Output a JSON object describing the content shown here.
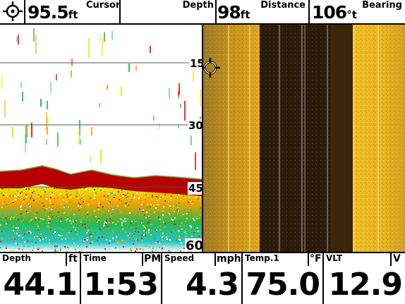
{
  "top": {
    "cursor_label": "Cursor",
    "cursor_value": "95.5",
    "cursor_unit": "ft",
    "depth_label": "Depth",
    "depth_value": "98",
    "depth_unit": "ft",
    "distance_label": "Distance",
    "distance_value": "106",
    "distance_unit": "°t",
    "bearing_label": "Bearing"
  },
  "sonar": {
    "depth_marks": [
      "15",
      "30",
      "45",
      "60"
    ],
    "colors": {
      "bottom": "#b80000",
      "scatter_yellow": "#f2e600",
      "scatter_green": "#2bb84a",
      "scatter_cyan": "#27c6c9"
    }
  },
  "side_imaging": {
    "colors": {
      "water": "#2a1a0a",
      "bottom_light": "#f0c020",
      "bottom_mid": "#c89318"
    }
  },
  "bottom": {
    "depth": {
      "label": "Depth",
      "unit": "ft",
      "value": "44.1"
    },
    "time": {
      "label": "Time",
      "unit": "PM",
      "value": "1:53"
    },
    "speed": {
      "label": "Speed",
      "unit": "mph",
      "value": "4.3"
    },
    "temp": {
      "label": "Temp.1",
      "unit": "°F",
      "value": "75.0"
    },
    "volt": {
      "label": "VLT",
      "unit": "V",
      "value": "12.9"
    }
  }
}
